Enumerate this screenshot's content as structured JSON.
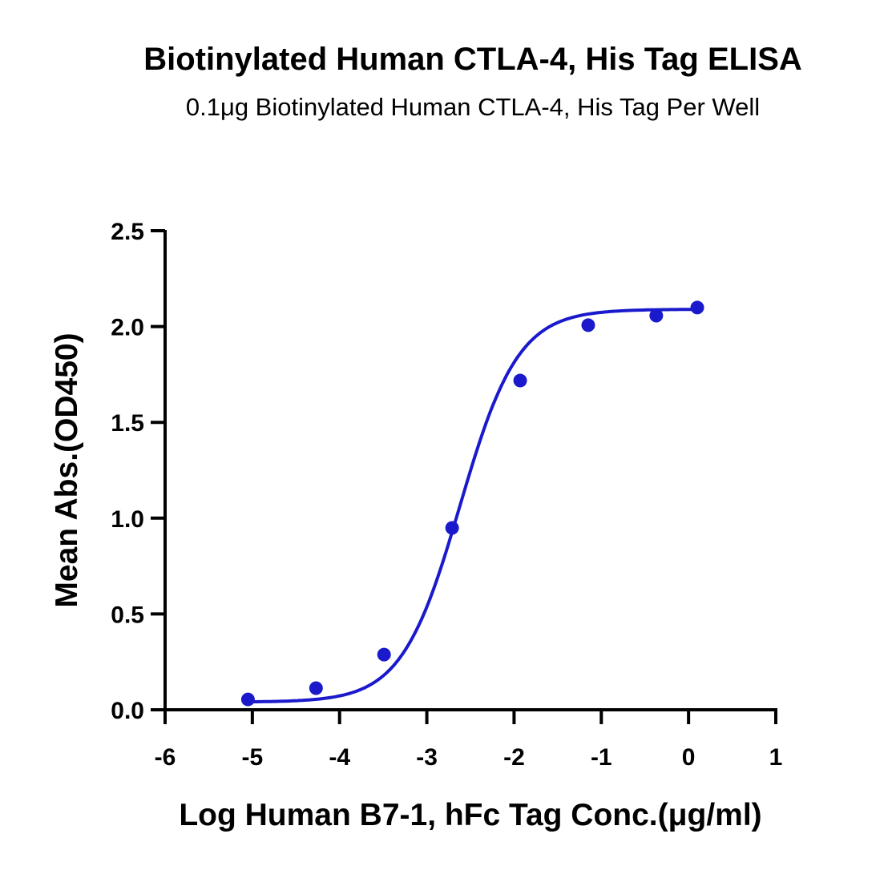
{
  "chart_data": {
    "type": "scatter",
    "title": "Biotinylated Human CTLA-4, His Tag ELISA",
    "subtitle": "0.1μg Biotinylated Human CTLA-4, His Tag Per Well",
    "xlabel": "Log Human B7-1, hFc Tag Conc.(μg/ml)",
    "ylabel": "Mean Abs.(OD450)",
    "xlim": [
      -6,
      1
    ],
    "ylim": [
      0,
      2.5
    ],
    "xticks": [
      -6,
      -5,
      -4,
      -3,
      -2,
      -1,
      0,
      1
    ],
    "xtick_labels": [
      "-6",
      "-5",
      "-4",
      "-3",
      "-2",
      "-1",
      "0",
      "1"
    ],
    "yticks": [
      0,
      0.5,
      1.0,
      1.5,
      2.0,
      2.5
    ],
    "ytick_labels": [
      "0.0",
      "0.5",
      "1.0",
      "1.5",
      "2.0",
      "2.5"
    ],
    "grid": false,
    "color": "#1a1acc",
    "points": {
      "x": [
        -5.05,
        -4.27,
        -3.49,
        -2.71,
        -1.93,
        -1.15,
        -0.37,
        0.1
      ],
      "y": [
        0.054,
        0.113,
        0.288,
        0.949,
        1.718,
        2.007,
        2.057,
        2.099
      ]
    },
    "fit": {
      "model": "4PL",
      "bottom": 0.04,
      "top": 2.09,
      "logEC50": -2.62,
      "hill": 1.3,
      "x_range": [
        -5.05,
        0.1
      ]
    }
  }
}
